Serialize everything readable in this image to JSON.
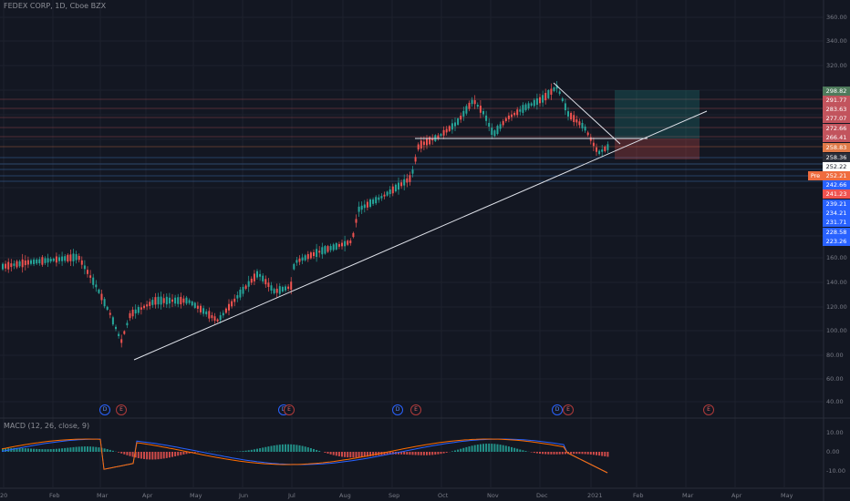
{
  "chart": {
    "symbol_title": "FEDEX CORP, 1D, Cboe BZX",
    "macd_title": "MACD (12, 26, close, 9)"
  },
  "price_axis": {
    "ticks": [
      "360.00",
      "340.00",
      "320.00",
      "160.00",
      "140.00",
      "120.00",
      "100.00",
      "80.00",
      "60.00",
      "40.00"
    ],
    "labels": [
      {
        "text": "298.82",
        "color": "#4e7a5b"
      },
      {
        "text": "291.77",
        "color": "#c2545d"
      },
      {
        "text": "283.63",
        "color": "#c2545d"
      },
      {
        "text": "277.07",
        "color": "#c2545d"
      },
      {
        "text": "272.66",
        "color": "#c2545d"
      },
      {
        "text": "266.41",
        "color": "#c2545d"
      },
      {
        "text": "258.83",
        "color": "#e07a48"
      },
      {
        "text": "258.36",
        "color": "#2b2f3a"
      },
      {
        "text": "252.22",
        "color": "#ffffff"
      },
      {
        "text": "252.21",
        "color": "#ef6c3e"
      },
      {
        "text": "242.66",
        "color": "#2962ff"
      },
      {
        "text": "241.23",
        "color": "#ef5350"
      },
      {
        "text": "239.21",
        "color": "#2962ff"
      },
      {
        "text": "234.21",
        "color": "#2962ff"
      },
      {
        "text": "231.71",
        "color": "#2962ff"
      },
      {
        "text": "228.58",
        "color": "#2962ff"
      },
      {
        "text": "223.26",
        "color": "#2962ff"
      }
    ],
    "pre_badge": "Pre"
  },
  "macd_axis": {
    "ticks": [
      "10.00",
      "0.00",
      "-10.00"
    ]
  },
  "time_axis": {
    "ticks": [
      "20",
      "Feb",
      "Mar",
      "Apr",
      "May",
      "Jun",
      "Jul",
      "Aug",
      "Sep",
      "Oct",
      "Nov",
      "Dec",
      "2021",
      "Feb",
      "Mar",
      "Apr",
      "May"
    ]
  },
  "events": [
    {
      "type": "D",
      "label": "D"
    },
    {
      "type": "E",
      "label": "E"
    },
    {
      "type": "D",
      "label": "D"
    },
    {
      "type": "E",
      "label": "E"
    },
    {
      "type": "D",
      "label": "D"
    },
    {
      "type": "E",
      "label": "E"
    },
    {
      "type": "D",
      "label": "D"
    },
    {
      "type": "E",
      "label": "E"
    },
    {
      "type": "E",
      "label": "E"
    }
  ],
  "colors": {
    "background": "#131722",
    "up": "#26a69a",
    "down": "#ef5350",
    "grid": "#1e222d",
    "macd": "#2962ff",
    "signal": "#ff6d00"
  }
}
